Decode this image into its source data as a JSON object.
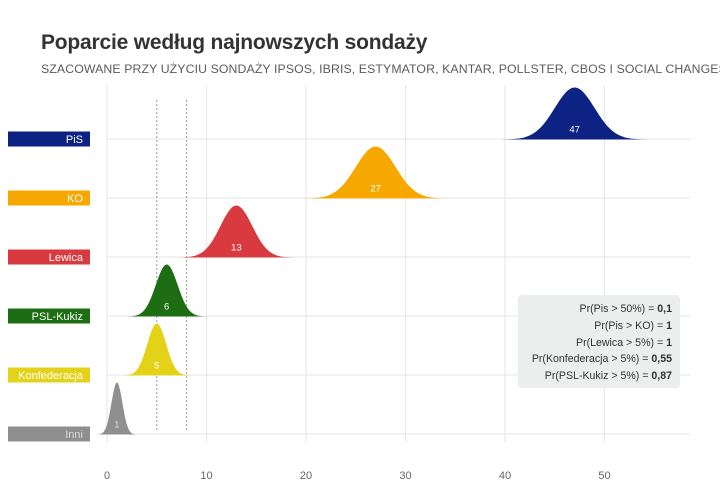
{
  "header": {
    "title": "Poparcie według najnowszych sondaży",
    "subtitle": "SZACOWANE PRZY UŻYCIU SONDAŻY IPSOS, IBRIS, ESTYMATOR, KANTAR, POLLSTER, CBOS I SOCIAL CHANGES"
  },
  "chart_data": {
    "type": "area",
    "subtype": "ridgeline",
    "title": "Poparcie według najnowszych sondaży",
    "subtitle": "SZACOWANE PRZY UŻYCIU SONDAŻY IPSOS, IBRIS, ESTYMATOR, KANTAR, POLLSTER, CBOS I SOCIAL CHANGES",
    "xlim": [
      0,
      58
    ],
    "x_ticks": [
      0,
      10,
      20,
      30,
      40,
      50
    ],
    "reference_lines": [
      5,
      8
    ],
    "grid": true,
    "series": [
      {
        "name": "PiS",
        "mean": 47,
        "sd": 2.0,
        "label": "47",
        "color": "#0c2383",
        "label_color": "#ffffff"
      },
      {
        "name": "KO",
        "mean": 27,
        "sd": 2.0,
        "label": "27",
        "color": "#f6a800",
        "label_color": "#ffffff"
      },
      {
        "name": "Lewica",
        "mean": 13,
        "sd": 1.6,
        "label": "13",
        "color": "#d93a3f",
        "label_color": "#ffffff"
      },
      {
        "name": "PSL-Kukiz",
        "mean": 6,
        "sd": 1.1,
        "label": "6",
        "color": "#1d6d12",
        "label_color": "#ffffff"
      },
      {
        "name": "Konfederacja",
        "mean": 5,
        "sd": 0.95,
        "label": "5",
        "color": "#e4d219",
        "label_color": "#ffffff"
      },
      {
        "name": "Inni",
        "mean": 1,
        "sd": 0.55,
        "label": "1",
        "color": "#8f8f8f",
        "label_color": "#d9d9d9"
      }
    ]
  },
  "probabilities": [
    {
      "label": "Pr(Pis > 50%) = ",
      "value": "0,1"
    },
    {
      "label": "Pr(Pis > KO) = ",
      "value": "1"
    },
    {
      "label": "Pr(Lewica > 5%) = ",
      "value": "1"
    },
    {
      "label": "Pr(Konfederacja > 5%) = ",
      "value": "0,55"
    },
    {
      "label": "Pr(PSL-Kukiz > 5%) = ",
      "value": "0,87"
    }
  ]
}
